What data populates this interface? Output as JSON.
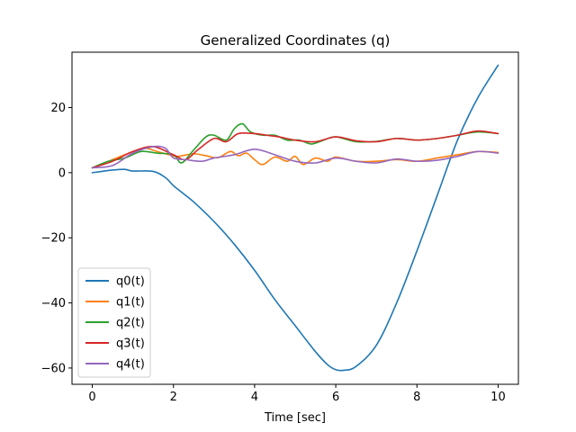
{
  "chart_data": {
    "type": "line",
    "title": "Generalized Coordinates (q)",
    "xlabel": "Time [sec]",
    "ylabel": "",
    "xlim": [
      -0.5,
      10.5
    ],
    "ylim": [
      -65,
      37
    ],
    "xticks": [
      0,
      2,
      4,
      6,
      8,
      10
    ],
    "yticks": [
      -60,
      -40,
      -20,
      0,
      20
    ],
    "ytick_labels": [
      "−60",
      "−40",
      "−20",
      "0",
      "20"
    ],
    "grid": false,
    "legend_position": "lower-left",
    "series": [
      {
        "name": "q0(t)",
        "color": "#1f77b4",
        "x": [
          0,
          0.5,
          0.8,
          1.0,
          1.5,
          1.8,
          2.0,
          2.2,
          2.5,
          3.0,
          3.5,
          4.0,
          4.5,
          5.0,
          5.5,
          5.8,
          6.0,
          6.2,
          6.5,
          7.0,
          7.5,
          8.0,
          8.5,
          9.0,
          9.5,
          10.0
        ],
        "y": [
          0,
          0.8,
          1.0,
          0.5,
          0.4,
          -1.5,
          -4,
          -6,
          -9,
          -15,
          -22,
          -30,
          -39,
          -47,
          -55,
          -59,
          -60.5,
          -60.7,
          -59.5,
          -53,
          -40,
          -24,
          -7,
          10,
          23,
          33
        ]
      },
      {
        "name": "q1(t)",
        "color": "#ff7f0e",
        "x": [
          0,
          0.4,
          0.8,
          1.0,
          1.3,
          1.6,
          1.9,
          2.1,
          2.5,
          2.8,
          3.1,
          3.4,
          3.6,
          3.8,
          4.0,
          4.2,
          4.5,
          4.8,
          5.0,
          5.2,
          5.5,
          5.8,
          6.0,
          6.5,
          7.0,
          7.5,
          8.0,
          8.5,
          9.0,
          9.5,
          10.0
        ],
        "y": [
          1.5,
          3.5,
          5.5,
          6.5,
          7.5,
          6.5,
          5.5,
          5,
          5.8,
          5.2,
          4.6,
          6.5,
          5.2,
          6,
          4,
          2.5,
          4.8,
          3.5,
          5,
          2.5,
          4.5,
          3.5,
          4.8,
          3.5,
          3.5,
          4,
          3.5,
          4.5,
          5.5,
          6.5,
          6.2
        ]
      },
      {
        "name": "q2(t)",
        "color": "#2ca02c",
        "x": [
          0,
          0.4,
          0.8,
          1.2,
          1.6,
          2.0,
          2.2,
          2.5,
          2.8,
          3.0,
          3.3,
          3.5,
          3.7,
          3.9,
          4.2,
          4.5,
          4.8,
          5.1,
          5.4,
          5.7,
          6.0,
          6.5,
          7.0,
          7.5,
          8.0,
          8.5,
          9.0,
          9.5,
          10.0
        ],
        "y": [
          1.5,
          3.5,
          4.5,
          6.5,
          6,
          5.5,
          3,
          7,
          11,
          11.5,
          10,
          13.5,
          15,
          12.5,
          11.5,
          11.5,
          10,
          10,
          8.8,
          10,
          11,
          9.5,
          9.6,
          10.5,
          10,
          10.5,
          11.5,
          12.5,
          12
        ]
      },
      {
        "name": "q3(t)",
        "color": "#d62728",
        "x": [
          0,
          0.5,
          1.0,
          1.5,
          2.0,
          2.3,
          2.6,
          3.0,
          3.3,
          3.6,
          4.0,
          4.3,
          4.6,
          5.0,
          5.5,
          6.0,
          6.5,
          7.0,
          7.5,
          8.0,
          8.5,
          9.0,
          9.5,
          10.0
        ],
        "y": [
          1.5,
          3.5,
          6.5,
          8,
          5.5,
          4,
          7,
          10.5,
          9.5,
          12,
          12,
          11.5,
          11,
          10,
          9.5,
          11,
          9.8,
          9.5,
          10.5,
          10,
          10.5,
          11.5,
          12.8,
          12
        ]
      },
      {
        "name": "q4(t)",
        "color": "#9467bd",
        "x": [
          0,
          0.5,
          1.0,
          1.5,
          1.8,
          2.0,
          2.3,
          2.7,
          3.0,
          3.5,
          4.0,
          4.5,
          5.0,
          5.5,
          6.0,
          6.5,
          7.0,
          7.5,
          8.0,
          8.5,
          9.0,
          9.5,
          10.0
        ],
        "y": [
          1.5,
          2.2,
          6,
          8,
          7.5,
          4.5,
          4,
          3.5,
          4.5,
          5.5,
          7.2,
          5.5,
          3.5,
          3,
          4.5,
          3.5,
          3,
          4.2,
          3.5,
          3.8,
          5,
          6.5,
          6
        ]
      }
    ]
  }
}
